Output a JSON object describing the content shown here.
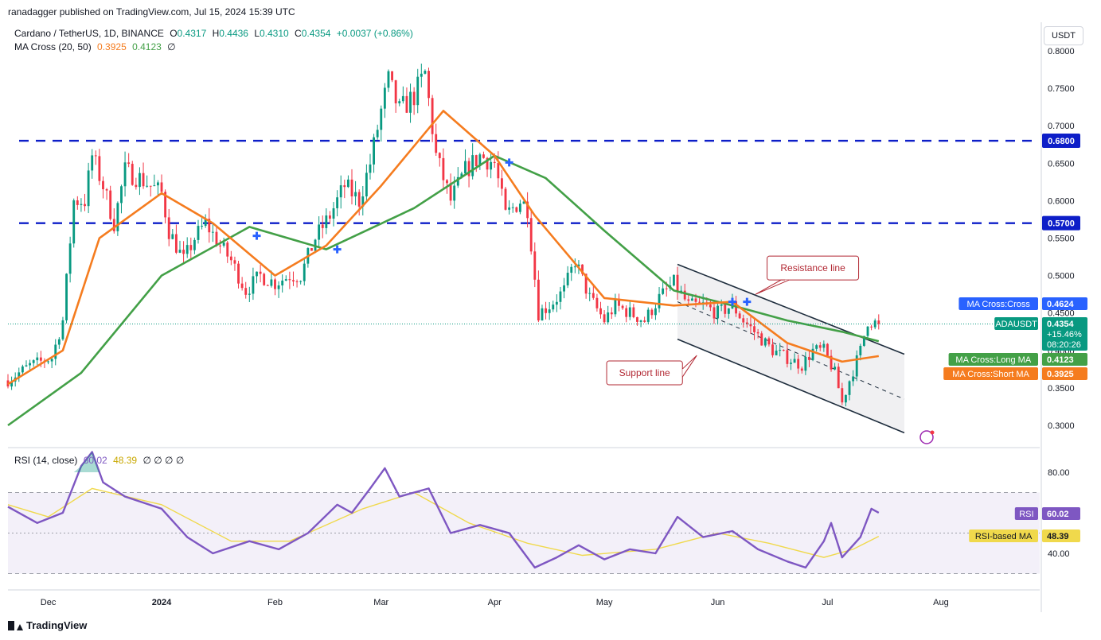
{
  "header": {
    "publisher": "ranadagger published on TradingView.com, Jul 15, 2024 15:39 UTC"
  },
  "legend": {
    "symbol": "Cardano / TetherUS, 1D, BINANCE",
    "o_key": "O",
    "o_val": "0.4317",
    "h_key": "H",
    "h_val": "0.4436",
    "l_key": "L",
    "l_val": "0.4310",
    "c_key": "C",
    "c_val": "0.4354",
    "change": "+0.0037 (+0.86%)",
    "ma_title": "MA Cross (20, 50)",
    "ma_short": "0.3925",
    "ma_long": "0.4123",
    "ma_zero": "∅"
  },
  "rsi_legend": {
    "title": "RSI (14, close)",
    "rsi": "60.02",
    "rsi_ma": "48.39",
    "zeros": "∅ ∅ ∅ ∅"
  },
  "currency_button": "USDT",
  "footer": {
    "brand": "TradingView"
  },
  "colors": {
    "up": "#089981",
    "down": "#f23645",
    "ma_short": "#f57c1f",
    "ma_long": "#43a047",
    "levels": "#0d1ec8",
    "channel": "#1e2d3d",
    "rsi": "#7e57c2",
    "rsi_ma": "#f0d94c",
    "annotation": "#b22833"
  },
  "chart_data": [
    {
      "type": "candlestick",
      "title": "Cardano / TetherUS, 1D, BINANCE",
      "x_ticks": [
        "Dec",
        "2024",
        "Feb",
        "Mar",
        "Apr",
        "May",
        "Jun",
        "Jul",
        "Aug"
      ],
      "y_ticks": [
        "0.8000",
        "0.7500",
        "0.7000",
        "0.6500",
        "0.6000",
        "0.5500",
        "0.5000",
        "0.4500",
        "0.4000",
        "0.3500",
        "0.3000"
      ],
      "ylim": [
        0.28,
        0.82
      ],
      "x_start": "2023-11-20",
      "x_end": "2024-08-28",
      "grid": false,
      "price_path": [
        [
          "2023-11-20",
          0.36
        ],
        [
          "2023-11-26",
          0.38
        ],
        [
          "2023-12-02",
          0.39
        ],
        [
          "2023-12-05",
          0.44
        ],
        [
          "2023-12-08",
          0.6
        ],
        [
          "2023-12-11",
          0.6
        ],
        [
          "2023-12-13",
          0.66
        ],
        [
          "2023-12-16",
          0.62
        ],
        [
          "2023-12-19",
          0.57
        ],
        [
          "2023-12-22",
          0.64
        ],
        [
          "2023-12-26",
          0.63
        ],
        [
          "2023-12-29",
          0.62
        ],
        [
          "2024-01-01",
          0.61
        ],
        [
          "2024-01-03",
          0.56
        ],
        [
          "2024-01-07",
          0.52
        ],
        [
          "2024-01-10",
          0.55
        ],
        [
          "2024-01-13",
          0.57
        ],
        [
          "2024-01-17",
          0.54
        ],
        [
          "2024-01-20",
          0.52
        ],
        [
          "2024-01-24",
          0.48
        ],
        [
          "2024-01-28",
          0.5
        ],
        [
          "2024-02-01",
          0.49
        ],
        [
          "2024-02-05",
          0.5
        ],
        [
          "2024-02-08",
          0.5
        ],
        [
          "2024-02-12",
          0.55
        ],
        [
          "2024-02-16",
          0.58
        ],
        [
          "2024-02-20",
          0.62
        ],
        [
          "2024-02-24",
          0.6
        ],
        [
          "2024-02-27",
          0.65
        ],
        [
          "2024-03-01",
          0.72
        ],
        [
          "2024-03-03",
          0.76
        ],
        [
          "2024-03-06",
          0.72
        ],
        [
          "2024-03-10",
          0.74
        ],
        [
          "2024-03-13",
          0.77
        ],
        [
          "2024-03-16",
          0.66
        ],
        [
          "2024-03-20",
          0.6
        ],
        [
          "2024-03-24",
          0.64
        ],
        [
          "2024-03-28",
          0.66
        ],
        [
          "2024-04-01",
          0.65
        ],
        [
          "2024-04-04",
          0.58
        ],
        [
          "2024-04-08",
          0.6
        ],
        [
          "2024-04-10",
          0.59
        ],
        [
          "2024-04-13",
          0.45
        ],
        [
          "2024-04-16",
          0.46
        ],
        [
          "2024-04-20",
          0.48
        ],
        [
          "2024-04-23",
          0.52
        ],
        [
          "2024-04-27",
          0.47
        ],
        [
          "2024-05-01",
          0.44
        ],
        [
          "2024-05-04",
          0.46
        ],
        [
          "2024-05-08",
          0.45
        ],
        [
          "2024-05-12",
          0.44
        ],
        [
          "2024-05-16",
          0.47
        ],
        [
          "2024-05-20",
          0.49
        ],
        [
          "2024-05-24",
          0.46
        ],
        [
          "2024-05-28",
          0.46
        ],
        [
          "2024-06-01",
          0.45
        ],
        [
          "2024-06-05",
          0.46
        ],
        [
          "2024-06-08",
          0.44
        ],
        [
          "2024-06-12",
          0.42
        ],
        [
          "2024-06-16",
          0.4
        ],
        [
          "2024-06-20",
          0.39
        ],
        [
          "2024-06-24",
          0.38
        ],
        [
          "2024-06-27",
          0.4
        ],
        [
          "2024-06-30",
          0.4
        ],
        [
          "2024-07-03",
          0.37
        ],
        [
          "2024-07-05",
          0.33
        ],
        [
          "2024-07-07",
          0.36
        ],
        [
          "2024-07-10",
          0.4
        ],
        [
          "2024-07-12",
          0.44
        ],
        [
          "2024-07-15",
          0.4354
        ]
      ],
      "ma_short_path": [
        [
          "2023-11-20",
          0.355
        ],
        [
          "2023-12-05",
          0.4
        ],
        [
          "2023-12-15",
          0.55
        ],
        [
          "2024-01-01",
          0.61
        ],
        [
          "2024-01-15",
          0.57
        ],
        [
          "2024-02-01",
          0.5
        ],
        [
          "2024-02-15",
          0.54
        ],
        [
          "2024-03-01",
          0.62
        ],
        [
          "2024-03-18",
          0.72
        ],
        [
          "2024-04-01",
          0.66
        ],
        [
          "2024-04-12",
          0.58
        ],
        [
          "2024-05-01",
          0.47
        ],
        [
          "2024-05-20",
          0.46
        ],
        [
          "2024-06-05",
          0.465
        ],
        [
          "2024-06-20",
          0.41
        ],
        [
          "2024-07-05",
          0.385
        ],
        [
          "2024-07-15",
          0.3925
        ]
      ],
      "ma_long_path": [
        [
          "2023-11-20",
          0.3
        ],
        [
          "2023-12-10",
          0.37
        ],
        [
          "2024-01-01",
          0.5
        ],
        [
          "2024-01-25",
          0.565
        ],
        [
          "2024-02-15",
          0.535
        ],
        [
          "2024-03-10",
          0.59
        ],
        [
          "2024-04-01",
          0.66
        ],
        [
          "2024-04-15",
          0.63
        ],
        [
          "2024-05-01",
          0.56
        ],
        [
          "2024-05-20",
          0.48
        ],
        [
          "2024-06-05",
          0.46
        ],
        [
          "2024-06-20",
          0.44
        ],
        [
          "2024-07-05",
          0.425
        ],
        [
          "2024-07-15",
          0.4123
        ]
      ],
      "horizontal_levels": [
        {
          "value": 0.68,
          "label": "0.6800"
        },
        {
          "value": 0.57,
          "label": "0.5700"
        }
      ],
      "cross_markers": [
        {
          "date": "2024-01-27",
          "value": 0.553
        },
        {
          "date": "2024-02-18",
          "value": 0.535
        },
        {
          "date": "2024-04-05",
          "value": 0.651
        },
        {
          "date": "2024-06-05",
          "value": 0.465
        },
        {
          "date": "2024-06-09",
          "value": 0.465
        }
      ],
      "channel": {
        "resistance": [
          [
            "2024-05-21",
            0.515
          ],
          [
            "2024-07-22",
            0.395
          ]
        ],
        "support": [
          [
            "2024-05-21",
            0.415
          ],
          [
            "2024-07-22",
            0.29
          ]
        ],
        "mid": [
          [
            "2024-05-21",
            0.465
          ],
          [
            "2024-07-22",
            0.335
          ]
        ]
      },
      "annotations": [
        {
          "text": "Resistance line",
          "date": "2024-06-27",
          "value": 0.51
        },
        {
          "text": "Support line",
          "date": "2024-05-12",
          "value": 0.37
        }
      ],
      "price_labels": [
        {
          "name": "MA Cross:Cross",
          "value": "0.4624",
          "color": "#2962ff"
        },
        {
          "name": "ADAUSDT",
          "value": "0.4354",
          "extra1": "+15.46%",
          "extra2": "08:20:26",
          "color": "#089981"
        },
        {
          "name": "MA Cross:Long MA",
          "value": "0.4123",
          "color": "#43a047"
        },
        {
          "name": "MA Cross:Short MA",
          "value": "0.3925",
          "color": "#f57c1f"
        }
      ],
      "last_close": 0.4354
    },
    {
      "type": "line",
      "title": "RSI (14, close)",
      "y_ticks": [
        "80.00",
        "40.00"
      ],
      "ylim": [
        24,
        96
      ],
      "bands": [
        30,
        70
      ],
      "midline": 50,
      "rsi_path": [
        [
          "2023-11-20",
          63
        ],
        [
          "2023-11-28",
          55
        ],
        [
          "2023-12-05",
          60
        ],
        [
          "2023-12-10",
          83
        ],
        [
          "2023-12-13",
          90
        ],
        [
          "2023-12-16",
          75
        ],
        [
          "2023-12-22",
          68
        ],
        [
          "2024-01-01",
          62
        ],
        [
          "2024-01-08",
          48
        ],
        [
          "2024-01-15",
          40
        ],
        [
          "2024-01-25",
          46
        ],
        [
          "2024-02-02",
          42
        ],
        [
          "2024-02-10",
          50
        ],
        [
          "2024-02-18",
          64
        ],
        [
          "2024-02-22",
          60
        ],
        [
          "2024-02-27",
          72
        ],
        [
          "2024-03-02",
          82
        ],
        [
          "2024-03-06",
          68
        ],
        [
          "2024-03-14",
          72
        ],
        [
          "2024-03-20",
          50
        ],
        [
          "2024-03-28",
          54
        ],
        [
          "2024-04-05",
          50
        ],
        [
          "2024-04-12",
          33
        ],
        [
          "2024-04-18",
          38
        ],
        [
          "2024-04-24",
          44
        ],
        [
          "2024-05-01",
          37
        ],
        [
          "2024-05-08",
          42
        ],
        [
          "2024-05-15",
          40
        ],
        [
          "2024-05-21",
          58
        ],
        [
          "2024-05-28",
          48
        ],
        [
          "2024-06-05",
          51
        ],
        [
          "2024-06-12",
          42
        ],
        [
          "2024-06-20",
          36
        ],
        [
          "2024-06-25",
          33
        ],
        [
          "2024-06-30",
          46
        ],
        [
          "2024-07-02",
          55
        ],
        [
          "2024-07-05",
          38
        ],
        [
          "2024-07-10",
          48
        ],
        [
          "2024-07-13",
          62
        ],
        [
          "2024-07-15",
          60.02
        ]
      ],
      "rsi_ma_path": [
        [
          "2023-11-20",
          64
        ],
        [
          "2023-12-01",
          58
        ],
        [
          "2023-12-13",
          72
        ],
        [
          "2024-01-01",
          64
        ],
        [
          "2024-01-20",
          46
        ],
        [
          "2024-02-05",
          46
        ],
        [
          "2024-02-25",
          62
        ],
        [
          "2024-03-10",
          70
        ],
        [
          "2024-03-25",
          55
        ],
        [
          "2024-04-10",
          45
        ],
        [
          "2024-04-25",
          39
        ],
        [
          "2024-05-15",
          42
        ],
        [
          "2024-06-01",
          50
        ],
        [
          "2024-06-15",
          45
        ],
        [
          "2024-06-30",
          38
        ],
        [
          "2024-07-08",
          42
        ],
        [
          "2024-07-15",
          48.39
        ]
      ],
      "price_labels": [
        {
          "name": "RSI",
          "value": "60.02",
          "color": "#7e57c2"
        },
        {
          "name": "RSI-based MA",
          "value": "48.39",
          "color": "#f0d94c"
        }
      ]
    }
  ]
}
